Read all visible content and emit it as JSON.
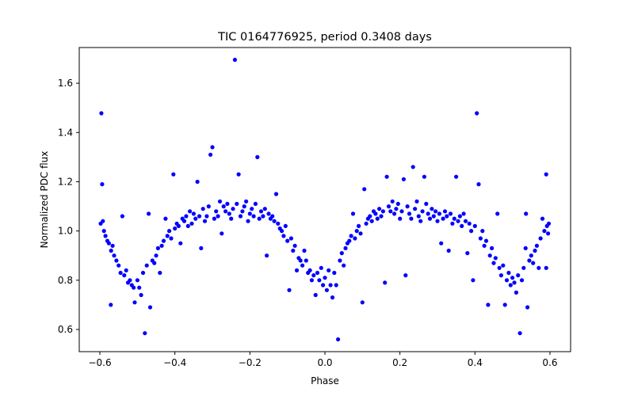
{
  "chart_data": {
    "type": "scatter",
    "title": "TIC 0164776925, period 0.3408 days",
    "xlabel": "Phase",
    "ylabel": "Normalized PDC flux",
    "xlim": [
      -0.655,
      0.655
    ],
    "ylim": [
      0.51,
      1.745
    ],
    "xticks": [
      -0.6,
      -0.4,
      -0.2,
      0.0,
      0.2,
      0.4,
      0.6
    ],
    "xtick_labels": [
      "−0.6",
      "−0.4",
      "−0.2",
      "0.0",
      "0.2",
      "0.4",
      "0.6"
    ],
    "yticks": [
      0.6,
      0.8,
      1.0,
      1.2,
      1.4,
      1.6
    ],
    "ytick_labels": [
      "0.6",
      "0.8",
      "1.0",
      "1.2",
      "1.4",
      "1.6"
    ],
    "grid": false,
    "series_color": "#0000ff",
    "points": [
      [
        -0.596,
        1.478
      ],
      [
        -0.594,
        1.19
      ],
      [
        -0.592,
        1.04
      ],
      [
        -0.598,
        1.03
      ],
      [
        -0.589,
        1.0
      ],
      [
        -0.585,
        0.98
      ],
      [
        -0.58,
        0.96
      ],
      [
        -0.576,
        0.95
      ],
      [
        -0.57,
        0.92
      ],
      [
        -0.566,
        0.94
      ],
      [
        -0.571,
        0.7
      ],
      [
        -0.562,
        0.9
      ],
      [
        -0.556,
        0.88
      ],
      [
        -0.55,
        0.86
      ],
      [
        -0.545,
        0.83
      ],
      [
        -0.54,
        1.06
      ],
      [
        -0.535,
        0.82
      ],
      [
        -0.53,
        0.84
      ],
      [
        -0.525,
        0.79
      ],
      [
        -0.52,
        0.8
      ],
      [
        -0.515,
        0.78
      ],
      [
        -0.51,
        0.77
      ],
      [
        -0.507,
        0.71
      ],
      [
        -0.5,
        0.8
      ],
      [
        -0.495,
        0.77
      ],
      [
        -0.49,
        0.74
      ],
      [
        -0.485,
        0.83
      ],
      [
        -0.48,
        0.585
      ],
      [
        -0.475,
        0.86
      ],
      [
        -0.47,
        1.07
      ],
      [
        -0.466,
        0.69
      ],
      [
        -0.46,
        0.88
      ],
      [
        -0.455,
        0.87
      ],
      [
        -0.45,
        0.9
      ],
      [
        -0.445,
        0.93
      ],
      [
        -0.44,
        0.83
      ],
      [
        -0.435,
        0.94
      ],
      [
        -0.43,
        0.96
      ],
      [
        -0.425,
        1.05
      ],
      [
        -0.42,
        0.98
      ],
      [
        -0.415,
        1.0
      ],
      [
        -0.41,
        0.97
      ],
      [
        -0.404,
        1.23
      ],
      [
        -0.4,
        1.01
      ],
      [
        -0.395,
        1.03
      ],
      [
        -0.39,
        1.02
      ],
      [
        -0.385,
        0.95
      ],
      [
        -0.38,
        1.05
      ],
      [
        -0.375,
        1.04
      ],
      [
        -0.37,
        1.06
      ],
      [
        -0.365,
        1.02
      ],
      [
        -0.36,
        1.08
      ],
      [
        -0.355,
        1.03
      ],
      [
        -0.35,
        1.07
      ],
      [
        -0.345,
        1.05
      ],
      [
        -0.34,
        1.2
      ],
      [
        -0.335,
        1.06
      ],
      [
        -0.33,
        0.93
      ],
      [
        -0.325,
        1.09
      ],
      [
        -0.32,
        1.04
      ],
      [
        -0.315,
        1.06
      ],
      [
        -0.31,
        1.1
      ],
      [
        -0.305,
        1.31
      ],
      [
        -0.3,
        1.34
      ],
      [
        -0.295,
        1.05
      ],
      [
        -0.29,
        1.08
      ],
      [
        -0.285,
        1.06
      ],
      [
        -0.28,
        1.12
      ],
      [
        -0.275,
        0.99
      ],
      [
        -0.27,
        1.1
      ],
      [
        -0.265,
        1.08
      ],
      [
        -0.26,
        1.11
      ],
      [
        -0.255,
        1.07
      ],
      [
        -0.25,
        1.05
      ],
      [
        -0.245,
        1.09
      ],
      [
        -0.24,
        1.695
      ],
      [
        -0.235,
        1.11
      ],
      [
        -0.23,
        1.23
      ],
      [
        -0.225,
        1.06
      ],
      [
        -0.22,
        1.08
      ],
      [
        -0.215,
        1.1
      ],
      [
        -0.21,
        1.12
      ],
      [
        -0.205,
        1.04
      ],
      [
        -0.2,
        1.07
      ],
      [
        -0.195,
        1.09
      ],
      [
        -0.19,
        1.06
      ],
      [
        -0.185,
        1.11
      ],
      [
        -0.18,
        1.3
      ],
      [
        -0.175,
        1.05
      ],
      [
        -0.17,
        1.08
      ],
      [
        -0.165,
        1.06
      ],
      [
        -0.16,
        1.09
      ],
      [
        -0.155,
        0.9
      ],
      [
        -0.15,
        1.07
      ],
      [
        -0.145,
        1.05
      ],
      [
        -0.14,
        1.06
      ],
      [
        -0.135,
        1.04
      ],
      [
        -0.13,
        1.15
      ],
      [
        -0.125,
        1.03
      ],
      [
        -0.12,
        1.01
      ],
      [
        -0.115,
        1.0
      ],
      [
        -0.11,
        0.98
      ],
      [
        -0.105,
        1.02
      ],
      [
        -0.1,
        0.96
      ],
      [
        -0.095,
        0.76
      ],
      [
        -0.09,
        0.97
      ],
      [
        -0.085,
        0.92
      ],
      [
        -0.08,
        0.94
      ],
      [
        -0.075,
        0.84
      ],
      [
        -0.07,
        0.89
      ],
      [
        -0.065,
        0.88
      ],
      [
        -0.06,
        0.86
      ],
      [
        -0.055,
        0.92
      ],
      [
        -0.05,
        0.88
      ],
      [
        -0.045,
        0.83
      ],
      [
        -0.04,
        0.84
      ],
      [
        -0.035,
        0.8
      ],
      [
        -0.03,
        0.82
      ],
      [
        -0.025,
        0.74
      ],
      [
        -0.02,
        0.83
      ],
      [
        -0.015,
        0.8
      ],
      [
        -0.01,
        0.85
      ],
      [
        -0.005,
        0.78
      ],
      [
        0.0,
        0.81
      ],
      [
        0.005,
        0.76
      ],
      [
        0.01,
        0.84
      ],
      [
        0.015,
        0.78
      ],
      [
        0.02,
        0.73
      ],
      [
        0.025,
        0.83
      ],
      [
        0.03,
        0.78
      ],
      [
        0.035,
        0.56
      ],
      [
        0.04,
        0.88
      ],
      [
        0.045,
        0.91
      ],
      [
        0.05,
        0.86
      ],
      [
        0.055,
        0.93
      ],
      [
        0.06,
        0.95
      ],
      [
        0.065,
        0.96
      ],
      [
        0.07,
        0.98
      ],
      [
        0.075,
        1.07
      ],
      [
        0.08,
        0.97
      ],
      [
        0.085,
        1.0
      ],
      [
        0.09,
        1.02
      ],
      [
        0.095,
        0.99
      ],
      [
        0.1,
        0.71
      ],
      [
        0.105,
        1.17
      ],
      [
        0.11,
        1.03
      ],
      [
        0.115,
        1.05
      ],
      [
        0.12,
        1.06
      ],
      [
        0.125,
        1.04
      ],
      [
        0.13,
        1.08
      ],
      [
        0.135,
        1.07
      ],
      [
        0.14,
        1.05
      ],
      [
        0.145,
        1.09
      ],
      [
        0.15,
        1.06
      ],
      [
        0.155,
        1.08
      ],
      [
        0.16,
        0.79
      ],
      [
        0.165,
        1.22
      ],
      [
        0.17,
        1.1
      ],
      [
        0.175,
        1.08
      ],
      [
        0.18,
        1.12
      ],
      [
        0.185,
        1.07
      ],
      [
        0.19,
        1.09
      ],
      [
        0.195,
        1.11
      ],
      [
        0.2,
        1.05
      ],
      [
        0.205,
        1.08
      ],
      [
        0.21,
        1.21
      ],
      [
        0.215,
        0.82
      ],
      [
        0.22,
        1.1
      ],
      [
        0.225,
        1.07
      ],
      [
        0.23,
        1.05
      ],
      [
        0.235,
        1.26
      ],
      [
        0.24,
        1.09
      ],
      [
        0.245,
        1.12
      ],
      [
        0.25,
        1.06
      ],
      [
        0.255,
        1.04
      ],
      [
        0.26,
        1.08
      ],
      [
        0.265,
        1.22
      ],
      [
        0.27,
        1.11
      ],
      [
        0.275,
        1.07
      ],
      [
        0.28,
        1.05
      ],
      [
        0.285,
        1.09
      ],
      [
        0.29,
        1.06
      ],
      [
        0.295,
        1.08
      ],
      [
        0.3,
        1.04
      ],
      [
        0.305,
        1.07
      ],
      [
        0.31,
        0.95
      ],
      [
        0.315,
        1.05
      ],
      [
        0.32,
        1.08
      ],
      [
        0.325,
        1.06
      ],
      [
        0.33,
        0.92
      ],
      [
        0.335,
        1.07
      ],
      [
        0.34,
        1.03
      ],
      [
        0.345,
        1.05
      ],
      [
        0.35,
        1.22
      ],
      [
        0.355,
        1.04
      ],
      [
        0.36,
        1.06
      ],
      [
        0.365,
        1.02
      ],
      [
        0.37,
        1.07
      ],
      [
        0.375,
        1.04
      ],
      [
        0.38,
        0.91
      ],
      [
        0.385,
        1.03
      ],
      [
        0.39,
        1.0
      ],
      [
        0.395,
        0.8
      ],
      [
        0.4,
        1.02
      ],
      [
        0.405,
        1.478
      ],
      [
        0.41,
        1.19
      ],
      [
        0.415,
        0.97
      ],
      [
        0.42,
        1.0
      ],
      [
        0.425,
        0.94
      ],
      [
        0.43,
        0.96
      ],
      [
        0.435,
        0.7
      ],
      [
        0.44,
        0.9
      ],
      [
        0.445,
        0.93
      ],
      [
        0.45,
        0.87
      ],
      [
        0.455,
        0.89
      ],
      [
        0.46,
        1.07
      ],
      [
        0.465,
        0.85
      ],
      [
        0.47,
        0.82
      ],
      [
        0.475,
        0.86
      ],
      [
        0.48,
        0.7
      ],
      [
        0.485,
        0.8
      ],
      [
        0.49,
        0.83
      ],
      [
        0.495,
        0.78
      ],
      [
        0.5,
        0.81
      ],
      [
        0.505,
        0.79
      ],
      [
        0.51,
        0.75
      ],
      [
        0.515,
        0.82
      ],
      [
        0.52,
        0.585
      ],
      [
        0.525,
        0.8
      ],
      [
        0.53,
        0.85
      ],
      [
        0.535,
        0.93
      ],
      [
        0.54,
        0.69
      ],
      [
        0.536,
        1.07
      ],
      [
        0.545,
        0.88
      ],
      [
        0.55,
        0.9
      ],
      [
        0.555,
        0.87
      ],
      [
        0.56,
        0.92
      ],
      [
        0.565,
        0.94
      ],
      [
        0.57,
        0.85
      ],
      [
        0.575,
        0.97
      ],
      [
        0.58,
        1.05
      ],
      [
        0.585,
        1.0
      ],
      [
        0.59,
        1.23
      ],
      [
        0.592,
        1.02
      ],
      [
        0.595,
        0.99
      ],
      [
        0.597,
        1.03
      ],
      [
        0.59,
        0.85
      ]
    ]
  }
}
